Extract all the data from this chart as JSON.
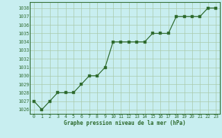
{
  "x": [
    0,
    1,
    2,
    3,
    4,
    5,
    6,
    7,
    8,
    9,
    10,
    11,
    12,
    13,
    14,
    15,
    16,
    17,
    18,
    19,
    20,
    21,
    22,
    23
  ],
  "y": [
    1027,
    1026,
    1027,
    1028,
    1028,
    1028,
    1029,
    1030,
    1030,
    1031,
    1034,
    1034,
    1034,
    1034,
    1034,
    1035,
    1035,
    1035,
    1037,
    1037,
    1037,
    1037,
    1038,
    1038
  ],
  "line_color": "#2d6a2d",
  "marker_color": "#2d6a2d",
  "bg_color": "#c8eef0",
  "grid_color": "#a8c8a8",
  "xlabel": "Graphe pression niveau de la mer (hPa)",
  "xlabel_color": "#2d6a2d",
  "tick_color": "#2d6a2d",
  "spine_color": "#2d6a2d",
  "ylim": [
    1025.5,
    1038.7
  ],
  "xlim": [
    -0.5,
    23.5
  ],
  "yticks": [
    1026,
    1027,
    1028,
    1029,
    1030,
    1031,
    1032,
    1033,
    1034,
    1035,
    1036,
    1037,
    1038
  ],
  "xticks": [
    0,
    1,
    2,
    3,
    4,
    5,
    6,
    7,
    8,
    9,
    10,
    11,
    12,
    13,
    14,
    15,
    16,
    17,
    18,
    19,
    20,
    21,
    22,
    23
  ],
  "xlabel_fontsize": 5.5,
  "tick_fontsize": 4.8,
  "linewidth": 0.9,
  "markersize": 2.2
}
